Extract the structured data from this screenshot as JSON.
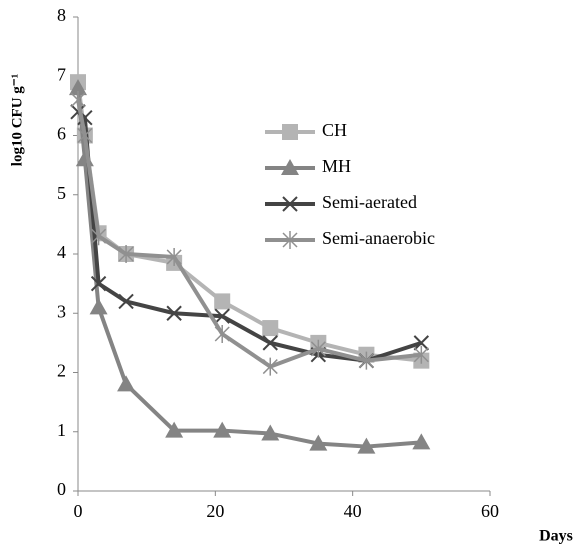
{
  "chart_data": {
    "type": "line",
    "y_label": "log10 CFU g⁻¹",
    "x_label": "Days",
    "x": [
      0,
      1,
      3,
      7,
      14,
      21,
      28,
      35,
      42,
      50
    ],
    "series": [
      {
        "name": "CH",
        "color": "#b4b4b4",
        "marker": "square",
        "values": [
          6.9,
          6.0,
          4.35,
          4.0,
          3.85,
          3.2,
          2.75,
          2.5,
          2.3,
          2.2
        ]
      },
      {
        "name": "MH",
        "color": "#848484",
        "marker": "triangle",
        "values": [
          6.8,
          5.6,
          3.1,
          1.8,
          1.02,
          1.02,
          0.97,
          0.8,
          0.75,
          0.82
        ]
      },
      {
        "name": "Semi-aerated",
        "color": "#444444",
        "marker": "x",
        "values": [
          6.4,
          6.3,
          3.5,
          3.2,
          3.0,
          2.95,
          2.5,
          2.3,
          2.2,
          2.5
        ]
      },
      {
        "name": "Semi-anaerobic",
        "color": "#909090",
        "marker": "star",
        "values": [
          6.6,
          6.0,
          4.3,
          4.0,
          3.95,
          2.65,
          2.1,
          2.4,
          2.2,
          2.3
        ]
      }
    ],
    "xlim": [
      0,
      60
    ],
    "xticks": [
      0,
      20,
      40,
      60
    ],
    "ylim": [
      0,
      8
    ],
    "yticks": [
      0,
      1,
      2,
      3,
      4,
      5,
      6,
      7,
      8
    ],
    "legend": "upper-right",
    "grid": false
  }
}
